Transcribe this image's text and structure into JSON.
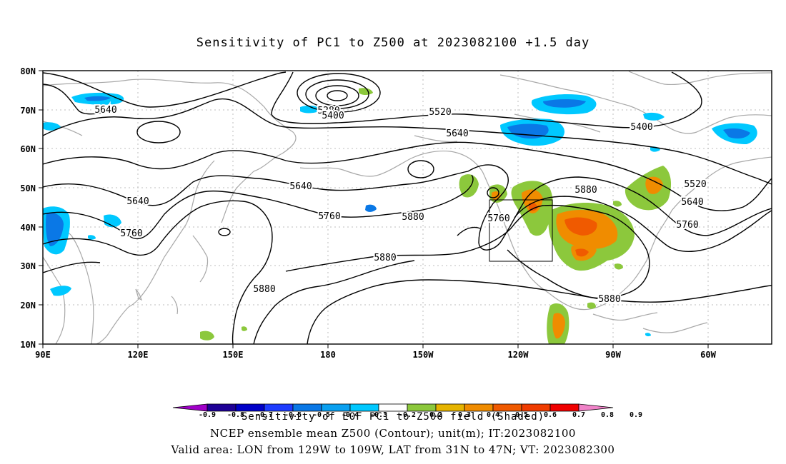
{
  "title": "Sensitivity of PC1 to Z500 at 2023082100 +1.5 day",
  "lat_labels": [
    "80N",
    "70N",
    "60N",
    "50N",
    "40N",
    "30N",
    "20N",
    "10N"
  ],
  "lon_labels": [
    "90E",
    "120E",
    "150E",
    "180",
    "150W",
    "120W",
    "90W",
    "60W"
  ],
  "contour_labels": [
    {
      "text": "5640",
      "kind": "lbl"
    },
    {
      "text": "5280",
      "kind": "lbl"
    },
    {
      "text": "5400",
      "kind": "lbl"
    },
    {
      "text": "5520",
      "kind": "lbl"
    },
    {
      "text": "5640",
      "kind": "lbl"
    },
    {
      "text": "5400",
      "kind": "lbl"
    },
    {
      "text": "5640",
      "kind": "lbl"
    },
    {
      "text": "5640",
      "kind": "lbl"
    },
    {
      "text": "5760",
      "kind": "lbl"
    },
    {
      "text": "5880",
      "kind": "lbl"
    },
    {
      "text": "5760",
      "kind": "lbl"
    },
    {
      "text": "5880",
      "kind": "lbl"
    },
    {
      "text": "5520",
      "kind": "lbl"
    },
    {
      "text": "5640",
      "kind": "lbl"
    },
    {
      "text": "5760",
      "kind": "lbl"
    },
    {
      "text": "5760",
      "kind": "lbl"
    },
    {
      "text": "5880",
      "kind": "lbl"
    },
    {
      "text": "5880",
      "kind": "lbl"
    },
    {
      "text": "5880",
      "kind": "lbl"
    }
  ],
  "colorbar": {
    "labels": [
      "-0.9",
      "-0.8",
      "-0.7",
      "-0.6",
      "-0.5",
      "-0.4",
      "-0.3",
      "-0.2",
      "0.2",
      "0.3",
      "0.4",
      "0.5",
      "0.6",
      "0.7",
      "0.8",
      "0.9"
    ],
    "colors": [
      "#a000c8",
      "#1e0096",
      "#0000c8",
      "#1e3cff",
      "#0a78e6",
      "#0aa0f0",
      "#00c8ff",
      "#ffffff",
      "#8cc83c",
      "#e6b400",
      "#f08c00",
      "#f05a00",
      "#f03c00",
      "#f00000",
      "#f082c8"
    ]
  },
  "footer": {
    "line1": "Sensitivity of EOF PC1 to Z500 field (Shaded)",
    "line2": "NCEP ensemble mean Z500 (Contour); unit(m); IT:2023082100",
    "line3": "Valid area: LON from 129W to 109W, LAT from 31N to 47N; VT: 2023082300"
  },
  "valid_box": {
    "lon_west": -129,
    "lon_east": -109,
    "lat_south": 31,
    "lat_north": 47
  },
  "shading": {
    "positive_color": "#8cc83c",
    "strong_positive": "#f08c00",
    "negative_color": "#0aa0f0",
    "strong_negative": "#1e3cff"
  }
}
